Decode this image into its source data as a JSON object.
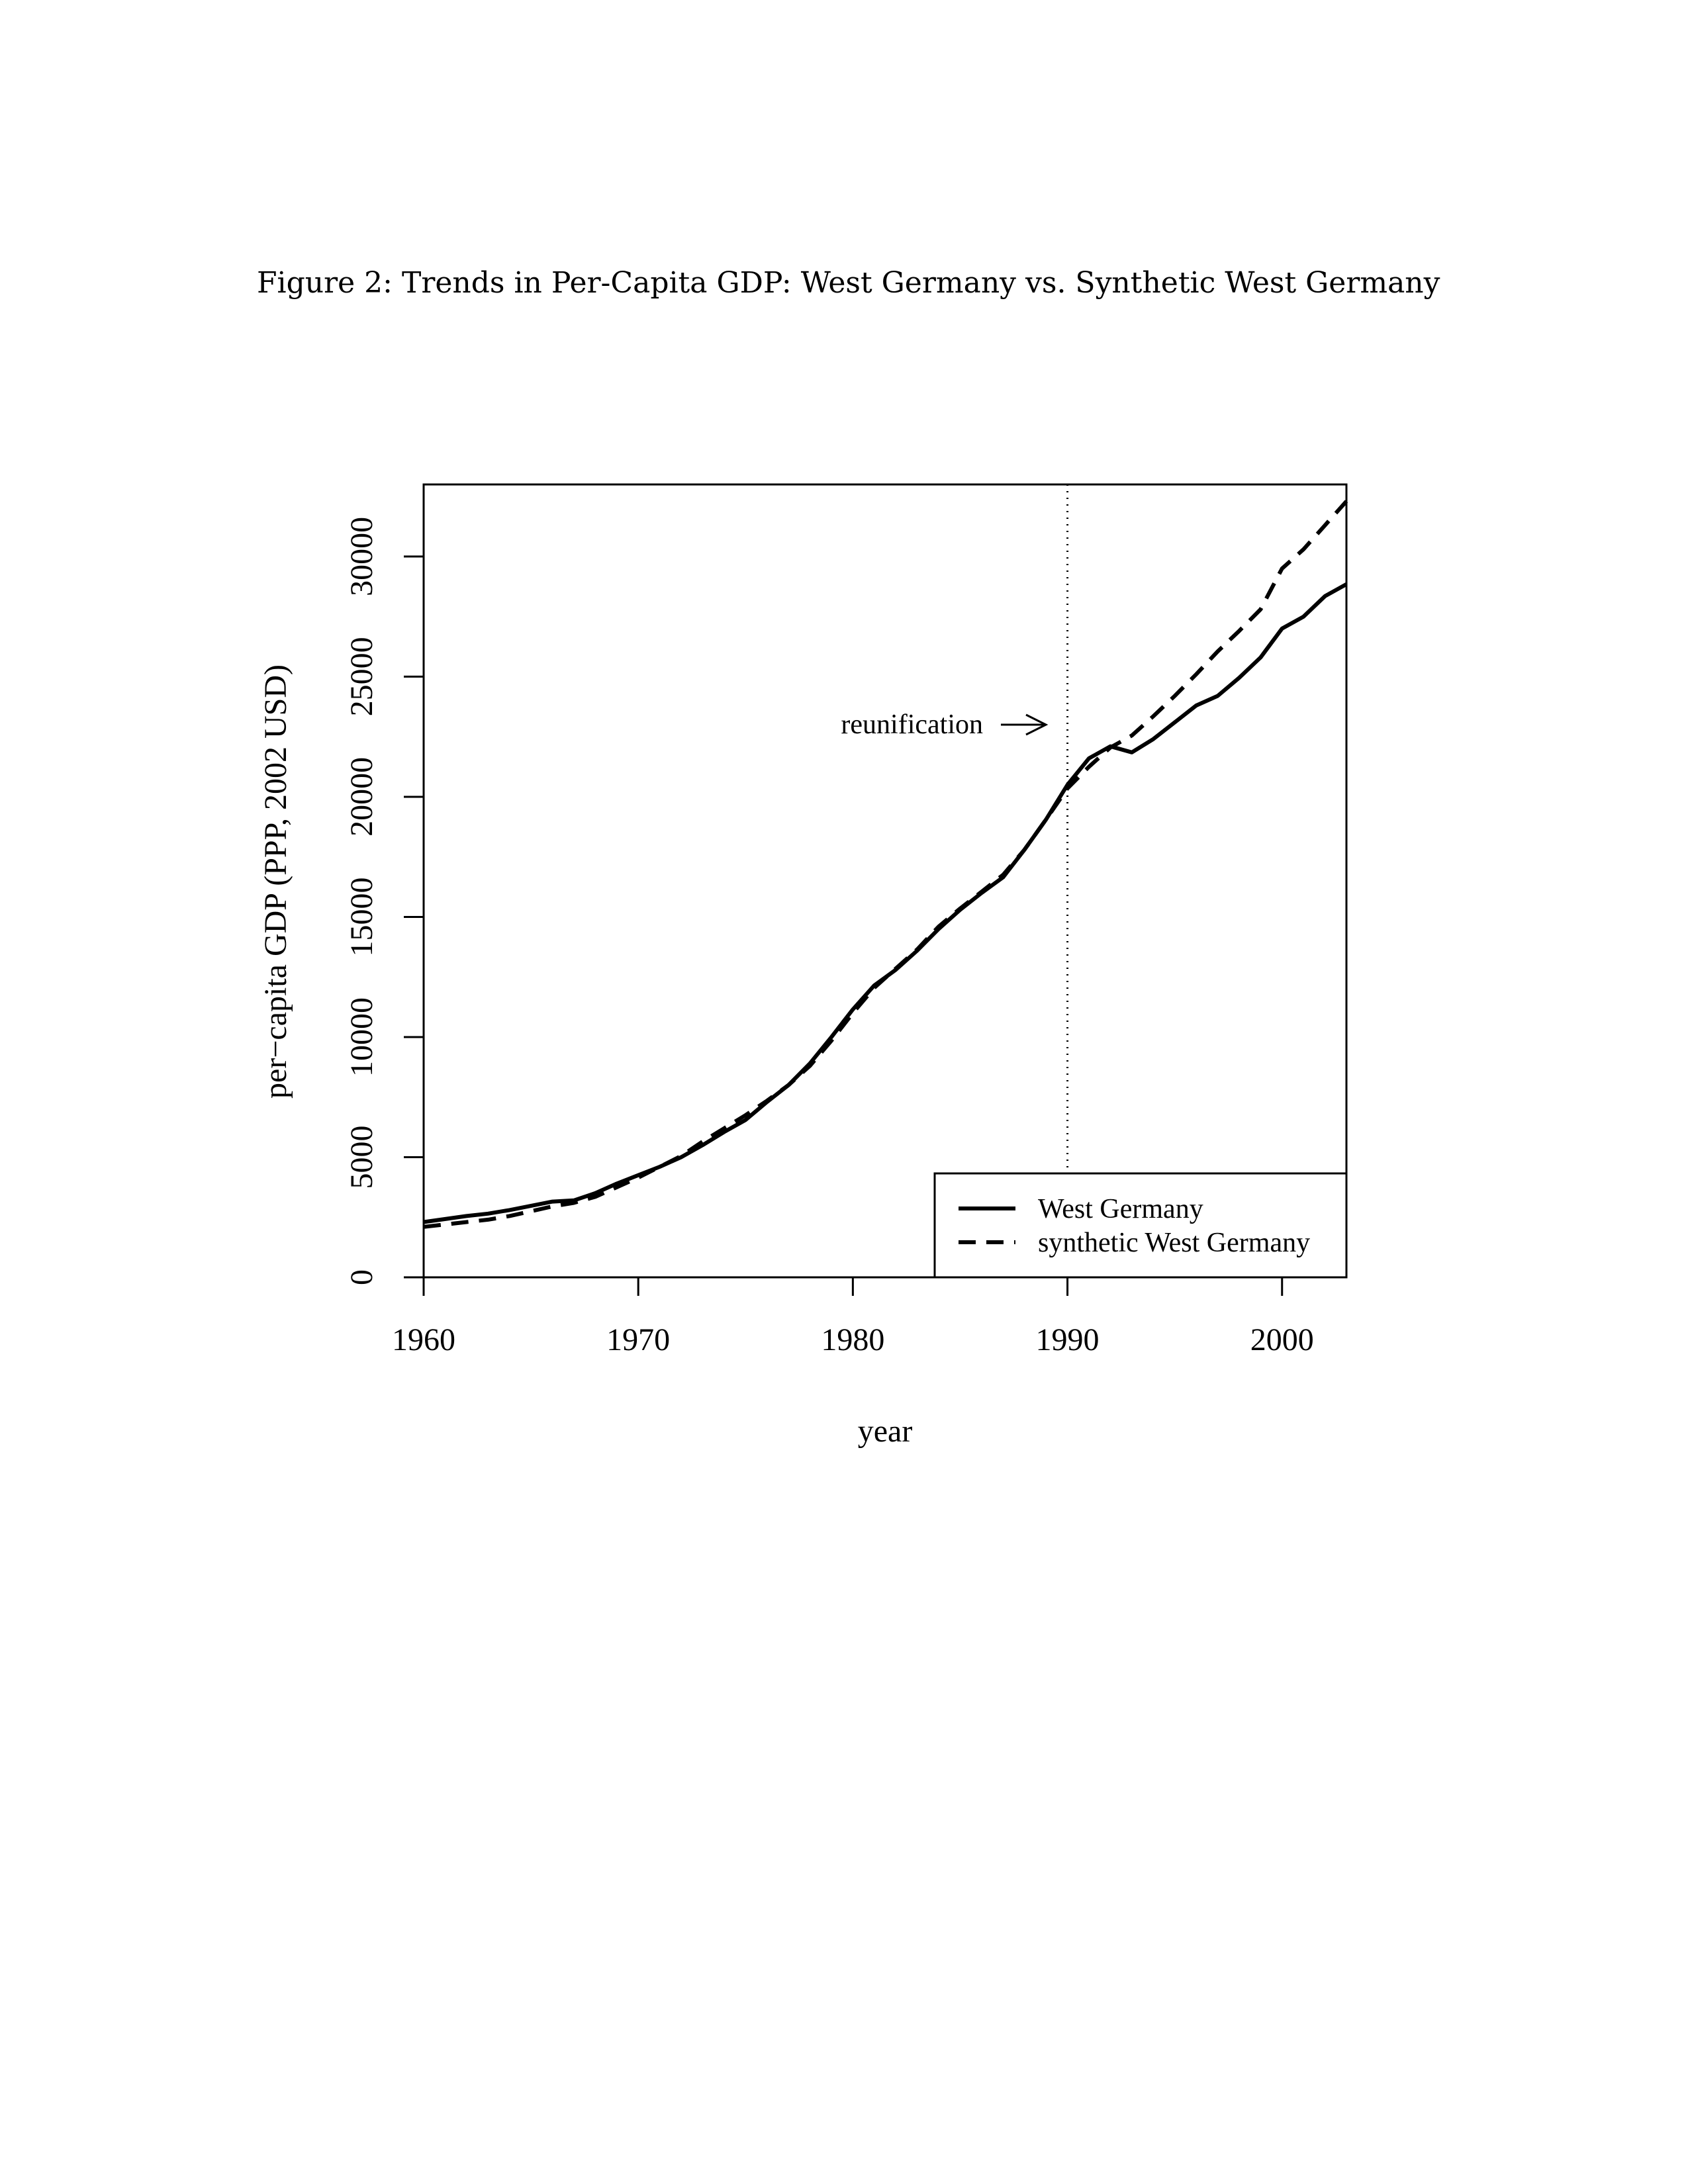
{
  "figure": {
    "caption": "Figure 2: Trends in Per-Capita GDP: West Germany vs. Synthetic West Germany"
  },
  "chart_data": {
    "type": "line",
    "title": "",
    "xlabel": "year",
    "ylabel": "per−capita GDP (PPP, 2002 USD)",
    "xlim": [
      1960,
      2003
    ],
    "ylim": [
      0,
      33000
    ],
    "x_ticks": [
      "1960",
      "1970",
      "1980",
      "1990",
      "2000"
    ],
    "y_ticks": [
      "0",
      "5000",
      "10000",
      "15000",
      "20000",
      "25000",
      "30000"
    ],
    "legend_position": "bottom-right",
    "annotation": {
      "text": "reunification",
      "x": 1990
    },
    "series": [
      {
        "name": "West Germany",
        "style": "solid",
        "points": [
          [
            1960,
            2300
          ],
          [
            1962,
            2550
          ],
          [
            1963,
            2650
          ],
          [
            1964,
            2800
          ],
          [
            1966,
            3150
          ],
          [
            1967,
            3200
          ],
          [
            1968,
            3500
          ],
          [
            1969,
            3900
          ],
          [
            1970,
            4250
          ],
          [
            1971,
            4600
          ],
          [
            1972,
            5000
          ],
          [
            1973,
            5500
          ],
          [
            1974,
            6050
          ],
          [
            1975,
            6550
          ],
          [
            1976,
            7300
          ],
          [
            1977,
            8000
          ],
          [
            1978,
            8900
          ],
          [
            1979,
            10000
          ],
          [
            1980,
            11150
          ],
          [
            1981,
            12150
          ],
          [
            1982,
            12800
          ],
          [
            1983,
            13600
          ],
          [
            1984,
            14500
          ],
          [
            1985,
            15300
          ],
          [
            1986,
            16000
          ],
          [
            1987,
            16650
          ],
          [
            1988,
            17800
          ],
          [
            1989,
            19050
          ],
          [
            1990,
            20500
          ],
          [
            1991,
            21600
          ],
          [
            1992,
            22100
          ],
          [
            1993,
            21850
          ],
          [
            1994,
            22400
          ],
          [
            1995,
            23100
          ],
          [
            1996,
            23800
          ],
          [
            1997,
            24200
          ],
          [
            1998,
            24950
          ],
          [
            1999,
            25800
          ],
          [
            2000,
            27000
          ],
          [
            2001,
            27500
          ],
          [
            2002,
            28350
          ],
          [
            2003,
            28850
          ]
        ]
      },
      {
        "name": "synthetic West Germany",
        "style": "dashed",
        "points": [
          [
            1960,
            2100
          ],
          [
            1962,
            2300
          ],
          [
            1963,
            2400
          ],
          [
            1964,
            2550
          ],
          [
            1966,
            2950
          ],
          [
            1967,
            3100
          ],
          [
            1968,
            3350
          ],
          [
            1969,
            3750
          ],
          [
            1970,
            4150
          ],
          [
            1971,
            4600
          ],
          [
            1972,
            5050
          ],
          [
            1973,
            5650
          ],
          [
            1974,
            6200
          ],
          [
            1975,
            6750
          ],
          [
            1976,
            7350
          ],
          [
            1977,
            8000
          ],
          [
            1978,
            8800
          ],
          [
            1979,
            9850
          ],
          [
            1980,
            11000
          ],
          [
            1981,
            12050
          ],
          [
            1982,
            12850
          ],
          [
            1983,
            13650
          ],
          [
            1984,
            14600
          ],
          [
            1985,
            15350
          ],
          [
            1986,
            16050
          ],
          [
            1987,
            16750
          ],
          [
            1988,
            17800
          ],
          [
            1989,
            19050
          ],
          [
            1990,
            20350
          ],
          [
            1991,
            21250
          ],
          [
            1992,
            22050
          ],
          [
            1993,
            22550
          ],
          [
            1994,
            23350
          ],
          [
            1995,
            24200
          ],
          [
            1996,
            25100
          ],
          [
            1997,
            26050
          ],
          [
            1998,
            26900
          ],
          [
            1999,
            27800
          ],
          [
            2000,
            29500
          ],
          [
            2001,
            30300
          ],
          [
            2002,
            31300
          ],
          [
            2003,
            32300
          ]
        ]
      }
    ]
  }
}
